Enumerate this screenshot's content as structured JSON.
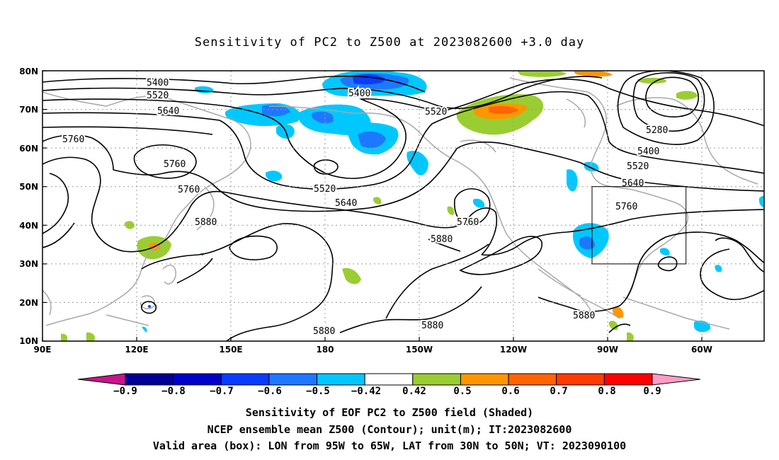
{
  "title": "Sensitivity of PC2 to Z500 at 2023082600 +3.0 day",
  "lat_labels": [
    "80N",
    "70N",
    "60N",
    "50N",
    "40N",
    "30N",
    "20N",
    "10N"
  ],
  "lon_labels": [
    "90E",
    "120E",
    "150E",
    "180",
    "150W",
    "120W",
    "90W",
    "60W"
  ],
  "contour_labels": [
    "5400",
    "5520",
    "5640",
    "5760",
    "5760",
    "5760",
    "5880",
    "5400",
    "5520",
    "5640",
    "5760",
    "5880",
    "5520",
    "5280",
    "5400",
    "5520",
    "5640",
    "5760",
    "5880",
    "5880",
    "5880"
  ],
  "colorbar": {
    "labels": [
      "−0.9",
      "−0.8",
      "−0.7",
      "−0.6",
      "−0.5",
      "−0.42",
      "0.42",
      "0.5",
      "0.6",
      "0.7",
      "0.8",
      "0.9"
    ],
    "colors": [
      "#000096",
      "#0000cd",
      "#0a3cff",
      "#1e78ff",
      "#00c8ff",
      "#ffffff",
      "#9acd32",
      "#ff9600",
      "#ff6400",
      "#ff3c00",
      "#ff0000"
    ],
    "neg_end_color": "#c8148c",
    "pos_end_color": "#ff9bc8"
  },
  "captions": [
    "Sensitivity of EOF PC2 to Z500 field (Shaded)",
    "NCEP ensemble mean Z500 (Contour); unit(m); IT:2023082600",
    "Valid area (box): LON from 95W to 65W, LAT from 30N to 50N; VT: 2023090100"
  ]
}
